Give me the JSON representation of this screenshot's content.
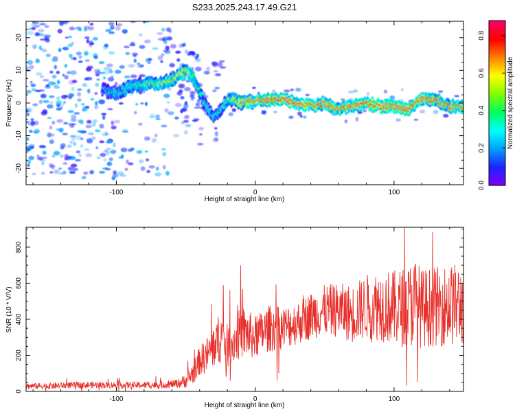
{
  "figure": {
    "title": "S233.2025.243.17.49.G21"
  },
  "colors": {
    "background": "#ffffff",
    "axis": "#000000",
    "snr_line": "#e8302a",
    "colorbar": [
      "#7f00ff",
      "#2020ff",
      "#00a0ff",
      "#00ffff",
      "#00ff60",
      "#7fff00",
      "#ffff00",
      "#ff8000",
      "#ff0000",
      "#ff0066"
    ]
  },
  "chart_data": [
    {
      "type": "heatmap",
      "title": "S233.2025.243.17.49.G21",
      "xlabel": "Height of straight line (km)",
      "ylabel": "Frequency (Hz)",
      "xlim": [
        -165,
        150
      ],
      "ylim": [
        -25,
        25
      ],
      "xticks": [
        -100,
        0,
        100
      ],
      "xtick_labels": [
        "-100",
        "0",
        "100"
      ],
      "yticks": [
        -20,
        -10,
        0,
        10,
        20
      ],
      "ytick_labels": [
        "-20",
        "-10",
        "0",
        "10",
        "20"
      ],
      "ridge": {
        "x": [
          -165,
          -110,
          -100,
          -90,
          -80,
          -70,
          -60,
          -50,
          -45,
          -40,
          -35,
          -30,
          -25,
          -20,
          -15,
          -10,
          0,
          10,
          20,
          30,
          40,
          50,
          60,
          70,
          80,
          90,
          100,
          110,
          120,
          130,
          140,
          150
        ],
        "y": [
          4,
          4,
          3,
          5,
          6,
          6,
          7,
          10,
          8,
          3,
          -1,
          -4,
          -2,
          1,
          1,
          0,
          1,
          1,
          1,
          0,
          -1,
          0,
          -2,
          -1,
          0,
          -1,
          -1,
          -2,
          1,
          1,
          -1,
          -1
        ],
        "amplitude": [
          0.15,
          0.2,
          0.3,
          0.35,
          0.4,
          0.45,
          0.55,
          0.6,
          0.45,
          0.35,
          0.3,
          0.3,
          0.35,
          0.45,
          0.55,
          0.6,
          0.75,
          0.8,
          0.85,
          0.8,
          0.75,
          0.75,
          0.7,
          0.75,
          0.8,
          0.75,
          0.75,
          0.85,
          0.75,
          0.7,
          0.7,
          0.65
        ]
      },
      "colorbar": {
        "label": "Normalized spectral amplitude",
        "range": [
          0.0,
          0.88
        ],
        "ticks": [
          0.0,
          0.2,
          0.4,
          0.6,
          0.8
        ],
        "tick_labels": [
          "0.0",
          "0.2",
          "0.4",
          "0.6",
          "0.8"
        ]
      }
    },
    {
      "type": "line",
      "xlabel": "Height of straight line (km)",
      "ylabel": "SNR (10 * V/V)",
      "xlim": [
        -165,
        150
      ],
      "ylim": [
        0,
        910
      ],
      "xticks": [
        -100,
        0,
        100
      ],
      "xtick_labels": [
        "-100",
        "0",
        "100"
      ],
      "yticks": [
        0,
        200,
        400,
        600,
        800
      ],
      "ytick_labels": [
        "0",
        "200",
        "400",
        "600",
        "800"
      ],
      "series": [
        {
          "name": "SNR",
          "x": [
            -165,
            -150,
            -130,
            -110,
            -90,
            -70,
            -60,
            -55,
            -50,
            -45,
            -40,
            -35,
            -30,
            -25,
            -20,
            -15,
            -10,
            0,
            10,
            20,
            30,
            40,
            50,
            60,
            70,
            80,
            90,
            100,
            110,
            115,
            120,
            130,
            140,
            150
          ],
          "y": [
            30,
            30,
            35,
            35,
            35,
            35,
            40,
            45,
            60,
            100,
            170,
            200,
            250,
            300,
            250,
            280,
            330,
            300,
            350,
            350,
            380,
            420,
            450,
            450,
            430,
            470,
            480,
            460,
            470,
            500,
            460,
            470,
            480,
            480
          ],
          "spread": [
            15,
            18,
            18,
            18,
            18,
            20,
            20,
            25,
            40,
            60,
            80,
            100,
            120,
            150,
            120,
            120,
            150,
            120,
            130,
            120,
            120,
            130,
            140,
            150,
            160,
            180,
            200,
            210,
            230,
            250,
            220,
            220,
            230,
            230
          ]
        }
      ]
    }
  ]
}
